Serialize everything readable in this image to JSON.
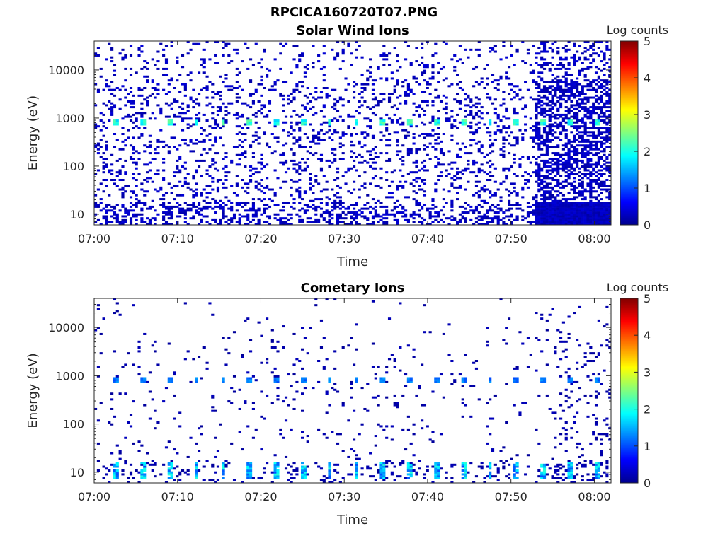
{
  "figure": {
    "title": "RPCICA160720T07.PNG"
  },
  "chart_data": [
    {
      "type": "heatmap",
      "title": "Solar Wind Ions",
      "xlabel": "Time",
      "ylabel": "Energy (eV)",
      "x_ticks": [
        "07:00",
        "07:10",
        "07:20",
        "07:30",
        "07:40",
        "07:50",
        "08:00"
      ],
      "xlim": [
        "07:00",
        "08:02"
      ],
      "y_scale": "log",
      "y_ticks": [
        "10",
        "100",
        "1000",
        "10000"
      ],
      "ylim": [
        6,
        40000
      ],
      "colorbar": {
        "label": "Log counts",
        "ticks": [
          "0",
          "1",
          "2",
          "3",
          "4",
          "5"
        ],
        "range": [
          0,
          5
        ],
        "colormap": "jet"
      },
      "features": {
        "peak_band_energy_eV": 820,
        "peak_band_level": 2.2,
        "peak_band_period_min": 3.2,
        "background_level": 0.3,
        "high_activity_after": "07:53"
      },
      "grid": false
    },
    {
      "type": "heatmap",
      "title": "Cometary Ions",
      "xlabel": "Time",
      "ylabel": "Energy (eV)",
      "x_ticks": [
        "07:00",
        "07:10",
        "07:20",
        "07:30",
        "07:40",
        "07:50",
        "08:00"
      ],
      "xlim": [
        "07:00",
        "08:02"
      ],
      "y_scale": "log",
      "y_ticks": [
        "10",
        "100",
        "1000",
        "10000"
      ],
      "ylim": [
        6,
        40000
      ],
      "colorbar": {
        "label": "Log counts",
        "ticks": [
          "0",
          "1",
          "2",
          "3",
          "4",
          "5"
        ],
        "range": [
          0,
          5
        ],
        "colormap": "jet"
      },
      "features": {
        "peak_band_energy_eV": 820,
        "peak_band_level": 1.3,
        "low_energy_band_eV": [
          7,
          16
        ],
        "low_energy_band_level": 1.9,
        "peak_band_period_min": 3.2,
        "background_level": 0.2,
        "high_activity_after": "07:55"
      },
      "grid": false
    }
  ]
}
